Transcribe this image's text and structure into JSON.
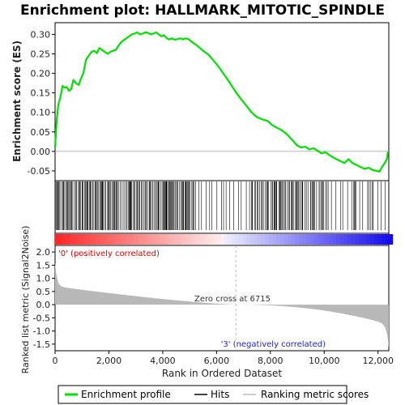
{
  "chart_data": {
    "type": "line",
    "title": "Enrichment plot: HALLMARK_MITOTIC_SPINDLE",
    "xlabel": "Rank in Ordered Dataset",
    "ylabel_top": "Enrichment score (ES)",
    "ylabel_bottom": "Ranked list metric (Signal2Noise)",
    "xlim": [
      0,
      12400
    ],
    "x_ticks": [
      0,
      2000,
      4000,
      6000,
      8000,
      10000,
      12000
    ],
    "x_tick_labels": [
      "0",
      "2,000",
      "4,000",
      "6,000",
      "8,000",
      "10,000",
      "12,000"
    ],
    "es_ylim": [
      -0.075,
      0.33
    ],
    "es_ticks": [
      -0.05,
      0.0,
      0.05,
      0.1,
      0.15,
      0.2,
      0.25,
      0.3
    ],
    "es_tick_labels": [
      "-0.05",
      "0.00",
      "0.05",
      "0.10",
      "0.15",
      "0.20",
      "0.25",
      "0.30"
    ],
    "metric_ylim": [
      -1.75,
      2.25
    ],
    "metric_ticks": [
      -1.5,
      -1.0,
      -0.5,
      0.0,
      0.5,
      1.0,
      1.5,
      2.0
    ],
    "metric_tick_labels": [
      "-1.5",
      "-1.0",
      "-0.5",
      "0.0",
      "0.5",
      "1.0",
      "1.5",
      "2.0"
    ],
    "series": [
      {
        "name": "Enrichment profile",
        "color": "#00e000",
        "x": [
          0,
          60,
          120,
          200,
          280,
          350,
          430,
          520,
          600,
          680,
          780,
          880,
          950,
          1050,
          1150,
          1250,
          1350,
          1450,
          1550,
          1650,
          1750,
          1850,
          1950,
          2050,
          2150,
          2250,
          2350,
          2450,
          2550,
          2650,
          2750,
          2850,
          2950,
          3050,
          3150,
          3250,
          3350,
          3450,
          3550,
          3650,
          3750,
          3850,
          3950,
          4050,
          4150,
          4250,
          4350,
          4450,
          4550,
          4650,
          4750,
          4850,
          4950,
          5100,
          5300,
          5500,
          5700,
          5900,
          6100,
          6300,
          6500,
          6715,
          6900,
          7100,
          7300,
          7500,
          7700,
          7900,
          8050,
          8200,
          8400,
          8600,
          8800,
          9000,
          9150,
          9300,
          9450,
          9600,
          9750,
          9900,
          10050,
          10200,
          10400,
          10600,
          10750,
          10900,
          11050,
          11200,
          11350,
          11500,
          11650,
          11800,
          11950,
          12050,
          12150,
          12250,
          12330,
          12370
        ],
        "y": [
          0.01,
          0.08,
          0.12,
          0.14,
          0.168,
          0.163,
          0.165,
          0.155,
          0.16,
          0.183,
          0.175,
          0.17,
          0.185,
          0.2,
          0.235,
          0.245,
          0.255,
          0.258,
          0.252,
          0.265,
          0.26,
          0.255,
          0.25,
          0.255,
          0.258,
          0.26,
          0.27,
          0.28,
          0.285,
          0.29,
          0.295,
          0.3,
          0.302,
          0.305,
          0.3,
          0.302,
          0.305,
          0.304,
          0.3,
          0.302,
          0.305,
          0.3,
          0.295,
          0.298,
          0.29,
          0.287,
          0.29,
          0.286,
          0.288,
          0.29,
          0.287,
          0.29,
          0.288,
          0.28,
          0.27,
          0.258,
          0.248,
          0.232,
          0.215,
          0.195,
          0.175,
          0.152,
          0.135,
          0.118,
          0.1,
          0.088,
          0.082,
          0.078,
          0.068,
          0.062,
          0.055,
          0.045,
          0.03,
          0.015,
          0.01,
          0.012,
          0.005,
          0.008,
          0.002,
          -0.005,
          -0.002,
          -0.01,
          -0.018,
          -0.025,
          -0.03,
          -0.02,
          -0.03,
          -0.035,
          -0.04,
          -0.045,
          -0.042,
          -0.048,
          -0.05,
          -0.052,
          -0.04,
          -0.03,
          -0.02,
          0.0
        ]
      }
    ],
    "hits_label": "Hits",
    "ranking_label": "Ranking metric scores",
    "pos_label": "'0' (positively correlated)",
    "neg_label": "'3' (negatively correlated)",
    "zero_cross_label": "Zero cross at 6715",
    "zero_cross": 6715,
    "n_genes": 12400,
    "colors": {
      "es_line": "#00e000",
      "pos_label": "#e00000",
      "neg_label": "#2020d0",
      "metric_fill": "#b8b8b8",
      "zero_line": "#aaaaaa"
    }
  },
  "legend": {
    "items": [
      {
        "label": "Enrichment profile",
        "color": "#00e000"
      },
      {
        "label": "Hits",
        "color": "#000000"
      },
      {
        "label": "Ranking metric scores",
        "color": "#bbbbbb"
      }
    ]
  }
}
